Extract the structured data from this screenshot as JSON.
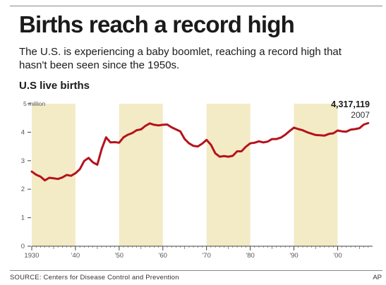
{
  "header": {
    "title": "Births reach a record high",
    "subtitle": "The U.S. is experiencing a baby boomlet, reaching a record high that hasn't been seen since the 1950s."
  },
  "footer": {
    "source": "SOURCE: Centers for Disease Control and Prevention",
    "credit": "AP"
  },
  "colors": {
    "line": "#b5121b",
    "band": "#f3ebc6",
    "axis": "#444444",
    "tick_text": "#555555"
  },
  "chart_data": {
    "type": "line",
    "title": "U.S live births",
    "ylabel": "",
    "xlabel": "",
    "xlim": [
      1930,
      2008
    ],
    "ylim": [
      0,
      5
    ],
    "y_ticks": [
      0,
      1,
      2,
      3,
      4,
      5
    ],
    "y_tick_labels": [
      "0",
      "1",
      "2",
      "3",
      "4",
      "5 million"
    ],
    "x_ticks": [
      1930,
      1940,
      1950,
      1960,
      1970,
      1980,
      1990,
      2000
    ],
    "x_tick_labels": [
      "1930",
      "'40",
      "'50",
      "'60",
      "'70",
      "'80",
      "'90",
      "'00"
    ],
    "shaded_decades": [
      [
        1930,
        1940
      ],
      [
        1950,
        1960
      ],
      [
        1970,
        1980
      ],
      [
        1990,
        2000
      ]
    ],
    "grid": false,
    "annotation": {
      "value_label": "4,317,119",
      "year_label": "2007",
      "x": 2007,
      "y": 4.32
    },
    "series": [
      {
        "x": [
          1930,
          1931,
          1932,
          1933,
          1934,
          1935,
          1936,
          1937,
          1938,
          1939,
          1940,
          1941,
          1942,
          1943,
          1944,
          1945,
          1946,
          1947,
          1948,
          1949,
          1950,
          1951,
          1952,
          1953,
          1954,
          1955,
          1956,
          1957,
          1958,
          1959,
          1960,
          1961,
          1962,
          1963,
          1964,
          1965,
          1966,
          1967,
          1968,
          1969,
          1970,
          1971,
          1972,
          1973,
          1974,
          1975,
          1976,
          1977,
          1978,
          1979,
          1980,
          1981,
          1982,
          1983,
          1984,
          1985,
          1986,
          1987,
          1988,
          1989,
          1990,
          1991,
          1992,
          1993,
          1994,
          1995,
          1996,
          1997,
          1998,
          1999,
          2000,
          2001,
          2002,
          2003,
          2004,
          2005,
          2006,
          2007
        ],
        "values": [
          2.62,
          2.51,
          2.44,
          2.31,
          2.4,
          2.38,
          2.36,
          2.41,
          2.5,
          2.47,
          2.56,
          2.7,
          2.99,
          3.1,
          2.94,
          2.86,
          3.41,
          3.82,
          3.64,
          3.65,
          3.63,
          3.82,
          3.91,
          3.97,
          4.07,
          4.1,
          4.22,
          4.31,
          4.26,
          4.24,
          4.26,
          4.27,
          4.17,
          4.1,
          4.03,
          3.76,
          3.61,
          3.52,
          3.5,
          3.6,
          3.73,
          3.56,
          3.26,
          3.14,
          3.16,
          3.14,
          3.17,
          3.33,
          3.33,
          3.49,
          3.61,
          3.63,
          3.68,
          3.64,
          3.67,
          3.76,
          3.76,
          3.81,
          3.91,
          4.04,
          4.16,
          4.11,
          4.07,
          4.0,
          3.95,
          3.9,
          3.89,
          3.88,
          3.94,
          3.96,
          4.06,
          4.03,
          4.02,
          4.09,
          4.11,
          4.14,
          4.27,
          4.32
        ]
      }
    ]
  }
}
